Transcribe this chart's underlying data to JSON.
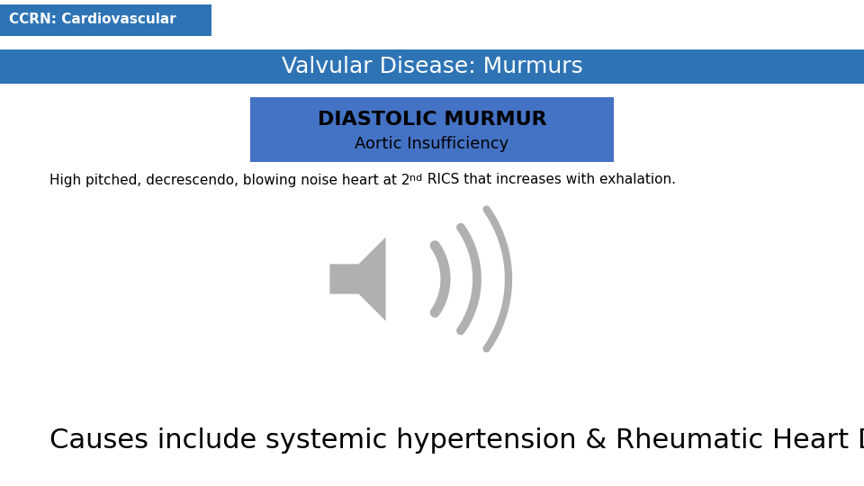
{
  "bg_color": "#ffffff",
  "header_bar_color": "#2E74B5",
  "header_bar_text": "CCRN: Cardiovascular",
  "header_bar_text_color": "#ffffff",
  "title_bar_color": "#2E74B5",
  "title_bar_text": "Valvular Disease: Murmurs",
  "title_bar_text_color": "#ffffff",
  "sub_box_color": "#4472C4",
  "sub_box_text1": "DIASTOLIC MURMUR",
  "sub_box_text2": "Aortic Insufficiency",
  "sub_box_text_color": "#000000",
  "desc_text_base": "High pitched, decrescendo, blowing noise heart at 2",
  "desc_superscript": "nd",
  "desc_text_rest": " RICS that increases with exhalation.",
  "desc_text_color": "#000000",
  "bottom_text": "Causes include systemic hypertension & Rheumatic Heart Disease",
  "bottom_text_color": "#000000",
  "speaker_color": "#b0b0b0",
  "speaker_outline_color": "#ffffff"
}
